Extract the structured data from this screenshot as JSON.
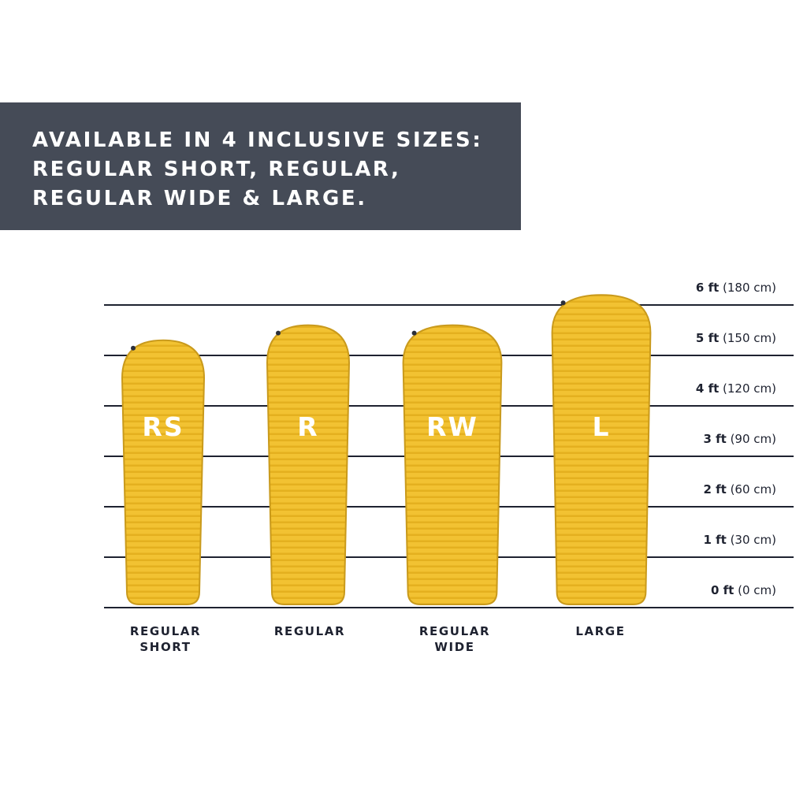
{
  "banner": {
    "lines": [
      "AVAILABLE IN 4 INCLUSIVE SIZES:",
      "REGULAR SHORT, REGULAR,",
      "REGULAR WIDE & LARGE."
    ]
  },
  "colors": {
    "banner_background": "#454b57",
    "banner_text": "#ffffff",
    "mat_yellow": "#f2c232",
    "mat_rib_shadow": "#d9a20f",
    "scale_line": "#1e2230",
    "label_text": "#1e2230"
  },
  "height_scale": {
    "unit_primary": "ft",
    "unit_secondary": "cm",
    "ticks": [
      {
        "ft": 0,
        "cm": 0,
        "num": "0 ft",
        "rest": " (0 cm)"
      },
      {
        "ft": 1,
        "cm": 30,
        "num": "1 ft",
        "rest": " (30 cm)"
      },
      {
        "ft": 2,
        "cm": 60,
        "num": "2 ft",
        "rest": " (60 cm)"
      },
      {
        "ft": 3,
        "cm": 90,
        "num": "3 ft",
        "rest": " (90 cm)"
      },
      {
        "ft": 4,
        "cm": 120,
        "num": "4 ft",
        "rest": " (120 cm)"
      },
      {
        "ft": 5,
        "cm": 150,
        "num": "5 ft",
        "rest": " (150 cm)"
      },
      {
        "ft": 6,
        "cm": 180,
        "num": "6 ft",
        "rest": " (180 cm)"
      }
    ]
  },
  "sizes": [
    {
      "code": "RS",
      "label_lines": [
        "REGULAR",
        "SHORT"
      ],
      "length_ft": 5.3,
      "relative_width": 1.0
    },
    {
      "code": "R",
      "label_lines": [
        "REGULAR"
      ],
      "length_ft": 5.6,
      "relative_width": 1.0
    },
    {
      "code": "RW",
      "label_lines": [
        "REGULAR",
        "WIDE"
      ],
      "length_ft": 5.6,
      "relative_width": 1.2
    },
    {
      "code": "L",
      "label_lines": [
        "LARGE"
      ],
      "length_ft": 6.2,
      "relative_width": 1.2
    }
  ]
}
